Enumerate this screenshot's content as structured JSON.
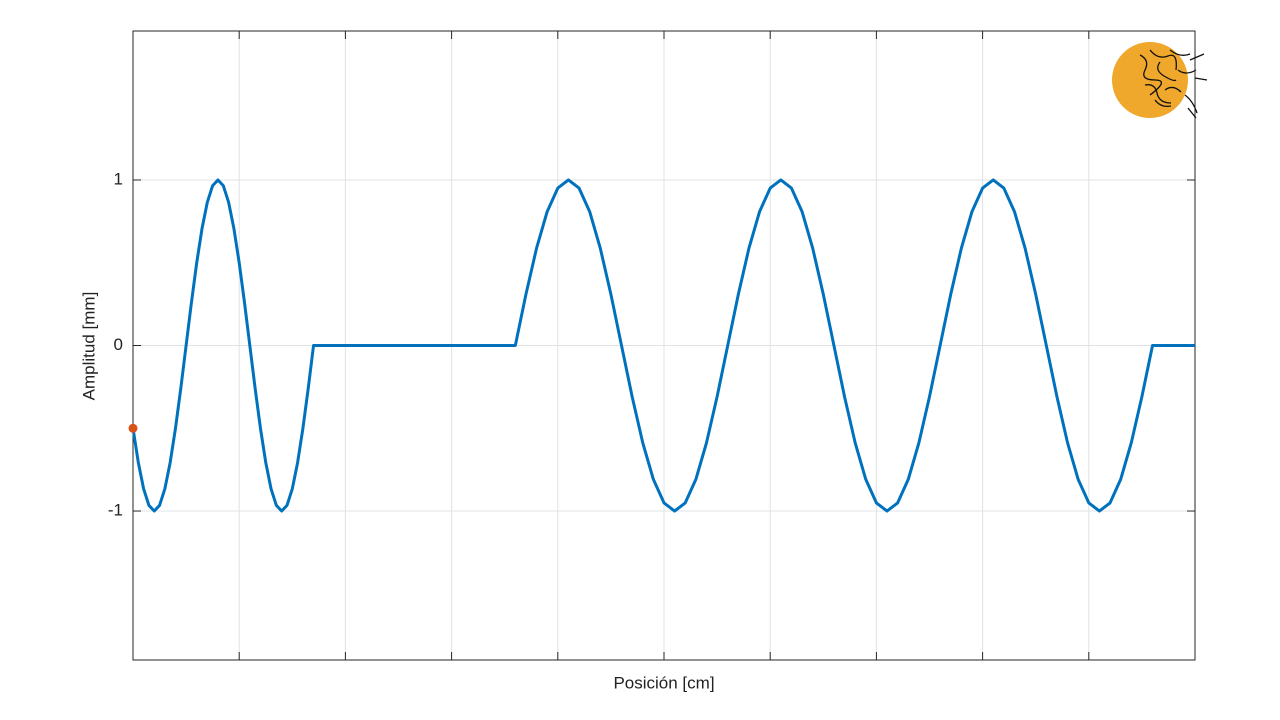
{
  "chart_data": {
    "type": "line",
    "x_label": "Posición [cm]",
    "y_label": "Amplitud [mm]",
    "x": [
      0,
      0.05,
      0.1,
      0.15,
      0.2,
      0.25,
      0.3,
      0.35,
      0.4,
      0.45,
      0.5,
      0.55,
      0.6,
      0.65,
      0.7,
      0.75,
      0.8,
      0.85,
      0.9,
      0.95,
      1.0,
      1.05,
      1.1,
      1.15,
      1.2,
      1.25,
      1.3,
      1.35,
      1.4,
      1.45,
      1.5,
      1.55,
      1.6,
      1.65,
      1.7,
      3.6,
      3.7,
      3.8,
      3.9,
      4.0,
      4.1,
      4.2,
      4.3,
      4.4,
      4.5,
      4.6,
      4.7,
      4.8,
      4.9,
      5.0,
      5.1,
      5.2,
      5.3,
      5.4,
      5.5,
      5.6,
      5.7,
      5.8,
      5.9,
      6.0,
      6.1,
      6.2,
      6.3,
      6.4,
      6.5,
      6.6,
      6.7,
      6.8,
      6.9,
      7.0,
      7.1,
      7.2,
      7.3,
      7.4,
      7.5,
      7.6,
      7.7,
      7.8,
      7.9,
      8.0,
      8.1,
      8.2,
      8.3,
      8.4,
      8.5,
      8.6,
      8.7,
      8.8,
      8.9,
      9.0,
      9.1,
      9.2,
      9.3,
      9.4,
      9.5,
      9.6,
      10
    ],
    "series": [
      {
        "color": "#0072bd",
        "values": [
          -0.5,
          -0.707,
          -0.866,
          -0.966,
          -1,
          -0.966,
          -0.866,
          -0.707,
          -0.5,
          -0.259,
          0,
          0.259,
          0.5,
          0.707,
          0.866,
          0.966,
          1,
          0.966,
          0.866,
          0.707,
          0.5,
          0.259,
          0,
          -0.259,
          -0.5,
          -0.707,
          -0.866,
          -0.966,
          -1,
          -0.966,
          -0.866,
          -0.707,
          -0.5,
          -0.259,
          0,
          0,
          0.309,
          0.588,
          0.809,
          0.951,
          1,
          0.951,
          0.809,
          0.588,
          0.309,
          0,
          -0.309,
          -0.588,
          -0.809,
          -0.951,
          -1,
          -0.951,
          -0.809,
          -0.588,
          -0.309,
          0,
          0.309,
          0.588,
          0.809,
          0.951,
          1,
          0.951,
          0.809,
          0.588,
          0.309,
          0,
          -0.309,
          -0.588,
          -0.809,
          -0.951,
          -1,
          -0.951,
          -0.809,
          -0.588,
          -0.309,
          0,
          0.309,
          0.588,
          0.809,
          0.951,
          1,
          0.951,
          0.809,
          0.588,
          0.309,
          0,
          -0.309,
          -0.588,
          -0.809,
          -0.951,
          -1,
          -0.951,
          -0.809,
          -0.588,
          -0.309,
          0,
          0
        ]
      }
    ],
    "marker": {
      "x": 0,
      "y": -0.5,
      "color": "#d95319"
    },
    "xlim": [
      0,
      10
    ],
    "xticks": [
      0,
      1,
      2,
      3,
      4,
      5,
      6,
      7,
      8,
      9,
      10
    ],
    "xtick_labels_visible": false,
    "ylim": [
      -1.9,
      1.9
    ],
    "yticks": [
      -1,
      0,
      1
    ],
    "grid": true
  }
}
